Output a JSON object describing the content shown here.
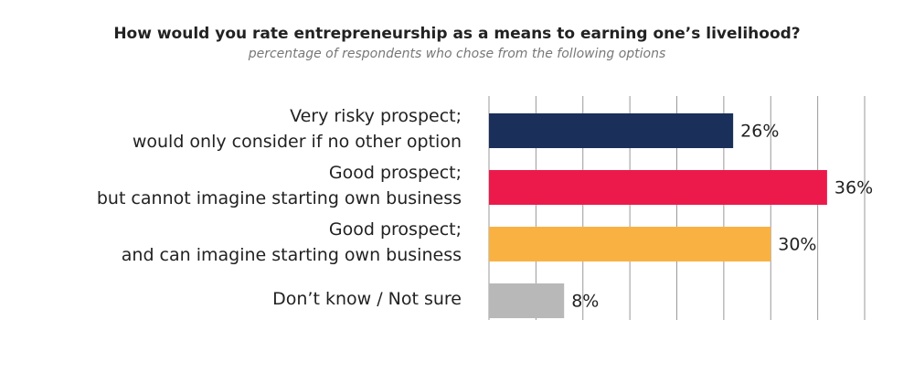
{
  "chart_data": {
    "type": "bar",
    "orientation": "horizontal",
    "title": "How would you rate entrepreneurship as a means to earning one’s livelihood?",
    "subtitle": "percentage of respondents who chose from the following options",
    "categories": [
      "Very risky prospect;\nwould only consider if no other option",
      "Good prospect;\nbut cannot imagine starting own business",
      "Good prospect;\nand can imagine starting own business",
      "Don’t know / Not sure"
    ],
    "values": [
      26,
      36,
      30,
      8
    ],
    "value_labels": [
      "26%",
      "36%",
      "30%",
      "8%"
    ],
    "colors": [
      "#1b2f5b",
      "#ec1a4b",
      "#f9b242",
      "#b8b8b8"
    ],
    "xlim": [
      0,
      40
    ],
    "xticks": [
      0,
      5,
      10,
      15,
      20,
      25,
      30,
      35,
      40
    ],
    "grid": true
  }
}
